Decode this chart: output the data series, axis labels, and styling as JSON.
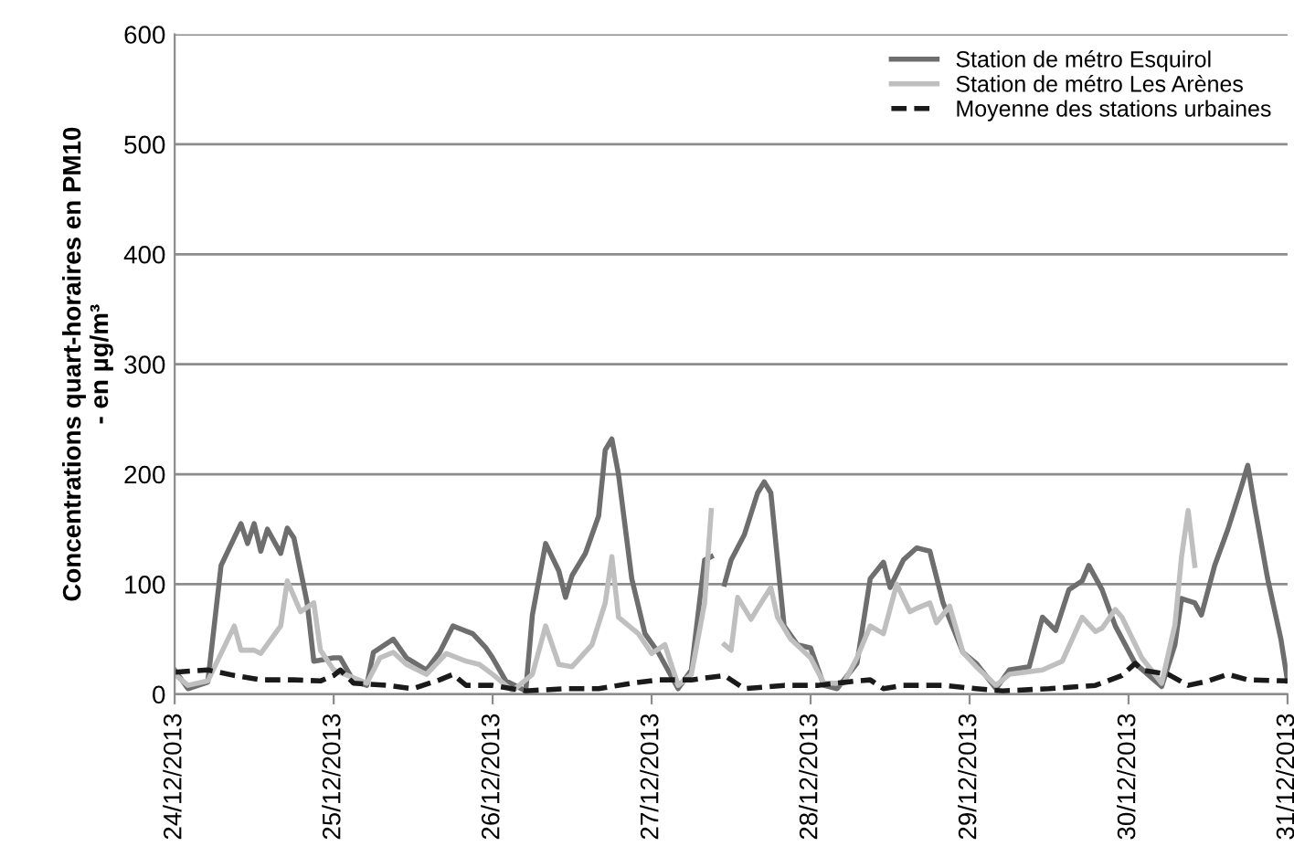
{
  "chart_data": {
    "type": "line",
    "ylabel": "Concentrations quart-horaires en PM10\n- en µg/m³",
    "xlim": [
      "2013-12-24",
      "2013-12-31"
    ],
    "xticks": [
      {
        "value": "2013-12-24",
        "label": "24/12/2013"
      },
      {
        "value": "2013-12-25",
        "label": "25/12/2013"
      },
      {
        "value": "2013-12-26",
        "label": "26/12/2013"
      },
      {
        "value": "2013-12-27",
        "label": "27/12/2013"
      },
      {
        "value": "2013-12-28",
        "label": "28/12/2013"
      },
      {
        "value": "2013-12-29",
        "label": "29/12/2013"
      },
      {
        "value": "2013-12-30",
        "label": "30/12/2013"
      },
      {
        "value": "2013-12-31",
        "label": "31/12/2013"
      }
    ],
    "ylim": [
      0,
      600
    ],
    "yticks": [
      0,
      100,
      200,
      300,
      400,
      500,
      600
    ],
    "grid": "y",
    "legend": "top right",
    "series": [
      {
        "name": "Station de métro Esquirol",
        "color": "#6e6e6e",
        "line_style": "solid",
        "x": [
          "2013-12-24T00:00",
          "2013-12-24T02:00",
          "2013-12-24T05:00",
          "2013-12-24T07:00",
          "2013-12-24T10:00",
          "2013-12-24T11:00",
          "2013-12-24T12:00",
          "2013-12-24T13:00",
          "2013-12-24T14:00",
          "2013-12-24T16:00",
          "2013-12-24T17:00",
          "2013-12-24T18:00",
          "2013-12-24T20:00",
          "2013-12-24T21:00",
          "2013-12-25T00:00",
          "2013-12-25T01:00",
          "2013-12-25T03:00",
          "2013-12-25T05:00",
          "2013-12-25T06:00",
          "2013-12-25T09:00",
          "2013-12-25T11:00",
          "2013-12-25T14:00",
          "2013-12-25T16:00",
          "2013-12-25T18:00",
          "2013-12-25T21:00",
          "2013-12-25T23:00",
          "2013-12-26T00:00",
          "2013-12-26T02:00",
          "2013-12-26T05:00",
          "2013-12-26T06:00",
          "2013-12-26T08:00",
          "2013-12-26T10:00",
          "2013-12-26T11:00",
          "2013-12-26T12:00",
          "2013-12-26T14:00",
          "2013-12-26T16:00",
          "2013-12-26T17:00",
          "2013-12-26T18:00",
          "2013-12-26T19:00",
          "2013-12-26T21:00",
          "2013-12-26T23:00",
          "2013-12-27T01:00",
          "2013-12-27T04:00",
          "2013-12-27T06:00",
          "2013-12-27T08:00",
          "2013-12-27T09:00",
          "2013-12-27T10:00",
          "2013-12-27T11:00",
          "2013-12-27T12:00",
          "2013-12-27T14:00",
          "2013-12-27T16:00",
          "2013-12-27T17:00",
          "2013-12-27T18:00",
          "2013-12-27T20:00",
          "2013-12-27T22:00",
          "2013-12-28T00:00",
          "2013-12-28T02:00",
          "2013-12-28T04:00",
          "2013-12-28T07:00",
          "2013-12-28T09:00",
          "2013-12-28T11:00",
          "2013-12-28T12:00",
          "2013-12-28T14:00",
          "2013-12-28T16:00",
          "2013-12-28T18:00",
          "2013-12-28T20:00",
          "2013-12-28T23:00",
          "2013-12-29T01:00",
          "2013-12-29T04:00",
          "2013-12-29T06:00",
          "2013-12-29T09:00",
          "2013-12-29T11:00",
          "2013-12-29T13:00",
          "2013-12-29T15:00",
          "2013-12-29T17:00",
          "2013-12-29T18:00",
          "2013-12-29T20:00",
          "2013-12-29T22:00",
          "2013-12-30T01:00",
          "2013-12-30T05:00",
          "2013-12-30T07:00",
          "2013-12-30T08:00",
          "2013-12-30T10:00",
          "2013-12-30T11:00",
          "2013-12-30T13:00",
          "2013-12-30T15:00",
          "2013-12-30T17:00",
          "2013-12-30T18:00",
          "2013-12-30T19:00",
          "2013-12-30T21:00",
          "2013-12-30T23:00",
          "2013-12-31T00:00"
        ],
        "values": [
          22,
          5,
          11,
          117,
          155,
          137,
          155,
          130,
          150,
          128,
          151,
          142,
          83,
          30,
          33,
          33,
          12,
          8,
          38,
          50,
          33,
          22,
          38,
          62,
          55,
          42,
          33,
          12,
          3,
          72,
          137,
          112,
          88,
          108,
          128,
          162,
          222,
          232,
          200,
          105,
          55,
          38,
          5,
          22,
          122,
          125,
          null,
          100,
          122,
          145,
          183,
          193,
          183,
          62,
          45,
          42,
          8,
          5,
          28,
          105,
          120,
          97,
          122,
          133,
          130,
          83,
          38,
          28,
          5,
          22,
          25,
          70,
          58,
          95,
          103,
          117,
          95,
          62,
          28,
          7,
          45,
          87,
          83,
          72,
          117,
          150,
          188,
          208,
          172,
          105,
          50,
          12
        ]
      },
      {
        "name": "Station de métro Les Arènes",
        "color": "#bfbfbf",
        "line_style": "solid",
        "x": [
          "2013-12-24T00:00",
          "2013-12-24T02:00",
          "2013-12-24T05:00",
          "2013-12-24T09:00",
          "2013-12-24T10:00",
          "2013-12-24T12:00",
          "2013-12-24T13:00",
          "2013-12-24T16:00",
          "2013-12-24T17:00",
          "2013-12-24T19:00",
          "2013-12-24T21:00",
          "2013-12-24T22:00",
          "2013-12-25T00:00",
          "2013-12-25T03:00",
          "2013-12-25T05:00",
          "2013-12-25T07:00",
          "2013-12-25T09:00",
          "2013-12-25T11:00",
          "2013-12-25T14:00",
          "2013-12-25T17:00",
          "2013-12-25T20:00",
          "2013-12-25T22:00",
          "2013-12-26T00:00",
          "2013-12-26T03:00",
          "2013-12-26T06:00",
          "2013-12-26T08:00",
          "2013-12-26T10:00",
          "2013-12-26T12:00",
          "2013-12-26T15:00",
          "2013-12-26T17:00",
          "2013-12-26T18:00",
          "2013-12-26T19:00",
          "2013-12-26T22:00",
          "2013-12-27T00:00",
          "2013-12-27T02:00",
          "2013-12-27T04:00",
          "2013-12-27T06:00",
          "2013-12-27T08:00",
          "2013-12-27T09:00",
          "2013-12-27T10:00",
          "2013-12-27T11:00",
          "2013-12-27T12:00",
          "2013-12-27T13:00",
          "2013-12-27T15:00",
          "2013-12-27T16:00",
          "2013-12-27T18:00",
          "2013-12-27T19:00",
          "2013-12-27T21:00",
          "2013-12-28T00:00",
          "2013-12-28T02:00",
          "2013-12-28T05:00",
          "2013-12-28T07:00",
          "2013-12-28T09:00",
          "2013-12-28T11:00",
          "2013-12-28T13:00",
          "2013-12-28T15:00",
          "2013-12-28T16:00",
          "2013-12-28T18:00",
          "2013-12-28T19:00",
          "2013-12-28T21:00",
          "2013-12-28T23:00",
          "2013-12-29T01:00",
          "2013-12-29T04:00",
          "2013-12-29T06:00",
          "2013-12-29T11:00",
          "2013-12-29T14:00",
          "2013-12-29T17:00",
          "2013-12-29T19:00",
          "2013-12-29T20:00",
          "2013-12-29T22:00",
          "2013-12-29T23:00",
          "2013-12-30T02:00",
          "2013-12-30T05:00",
          "2013-12-30T07:00",
          "2013-12-30T08:00",
          "2013-12-30T09:00",
          "2013-12-30T10:00"
        ],
        "values": [
          18,
          8,
          12,
          62,
          40,
          40,
          37,
          62,
          103,
          75,
          83,
          40,
          22,
          15,
          10,
          33,
          38,
          27,
          18,
          37,
          30,
          27,
          18,
          3,
          18,
          62,
          27,
          25,
          45,
          83,
          125,
          70,
          55,
          37,
          45,
          8,
          18,
          83,
          167,
          null,
          45,
          40,
          88,
          68,
          78,
          97,
          70,
          50,
          33,
          10,
          10,
          33,
          62,
          55,
          100,
          75,
          78,
          83,
          65,
          80,
          38,
          25,
          8,
          18,
          22,
          30,
          70,
          57,
          60,
          77,
          70,
          33,
          10,
          63,
          125,
          167,
          117
        ]
      },
      {
        "name": "Moyenne des stations urbaines",
        "color": "#1a1a1a",
        "line_style": "dashed",
        "x": [
          "2013-12-24T00:00",
          "2013-12-24T05:00",
          "2013-12-24T09:00",
          "2013-12-24T13:00",
          "2013-12-24T18:00",
          "2013-12-24T22:00",
          "2013-12-25T00:00",
          "2013-12-25T01:00",
          "2013-12-25T03:00",
          "2013-12-25T08:00",
          "2013-12-25T12:00",
          "2013-12-25T16:00",
          "2013-12-25T18:00",
          "2013-12-25T20:00",
          "2013-12-26T00:00",
          "2013-12-26T05:00",
          "2013-12-26T11:00",
          "2013-12-26T16:00",
          "2013-12-26T21:00",
          "2013-12-27T01:00",
          "2013-12-27T06:00",
          "2013-12-27T11:00",
          "2013-12-27T14:00",
          "2013-12-27T20:00",
          "2013-12-28T01:00",
          "2013-12-28T07:00",
          "2013-12-28T09:00",
          "2013-12-28T11:00",
          "2013-12-28T14:00",
          "2013-12-28T20:00",
          "2013-12-29T01:00",
          "2013-12-29T05:00",
          "2013-12-29T12:00",
          "2013-12-29T19:00",
          "2013-12-29T23:00",
          "2013-12-30T01:00",
          "2013-12-30T02:00",
          "2013-12-30T06:00",
          "2013-12-30T09:00",
          "2013-12-30T12:00",
          "2013-12-30T15:00",
          "2013-12-30T18:00",
          "2013-12-31T00:00"
        ],
        "values": [
          20,
          22,
          17,
          13,
          13,
          12,
          17,
          22,
          10,
          8,
          5,
          13,
          18,
          8,
          8,
          3,
          5,
          5,
          10,
          13,
          13,
          17,
          5,
          8,
          8,
          12,
          13,
          5,
          8,
          8,
          5,
          3,
          5,
          8,
          17,
          28,
          22,
          18,
          8,
          12,
          18,
          13,
          12
        ]
      }
    ]
  }
}
